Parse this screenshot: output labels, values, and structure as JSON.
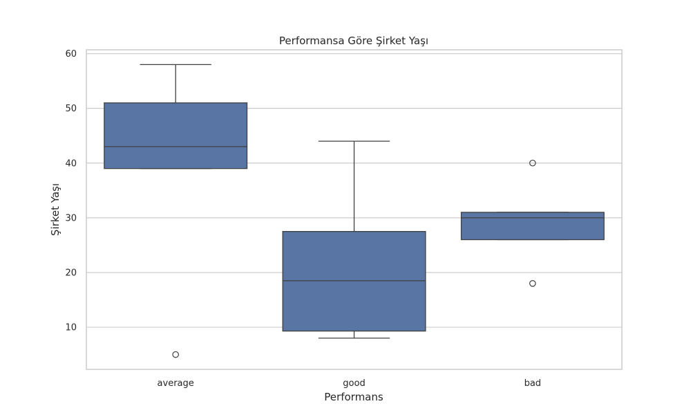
{
  "chart_data": {
    "type": "box",
    "title": "Performansa Göre Şirket Yaşı",
    "xlabel": "Performans",
    "ylabel": "Şirket Yaşı",
    "ylim": [
      2.3,
      60.7
    ],
    "yticks": [
      10,
      20,
      30,
      40,
      50,
      60
    ],
    "grid": true,
    "box_color": "#5875a4",
    "line_color": "#3f3f3f",
    "grid_color": "#cccccc",
    "categories": [
      "average",
      "good",
      "bad"
    ],
    "boxes": [
      {
        "category": "average",
        "whisker_low": 39,
        "q1": 39,
        "median": 43,
        "q3": 51,
        "whisker_high": 58,
        "outliers": [
          5
        ]
      },
      {
        "category": "good",
        "whisker_low": 8,
        "q1": 9.3,
        "median": 18.5,
        "q3": 27.5,
        "whisker_high": 44,
        "outliers": []
      },
      {
        "category": "bad",
        "whisker_low": 26,
        "q1": 26,
        "median": 30,
        "q3": 31,
        "whisker_high": 31,
        "outliers": [
          18,
          40
        ]
      }
    ]
  }
}
